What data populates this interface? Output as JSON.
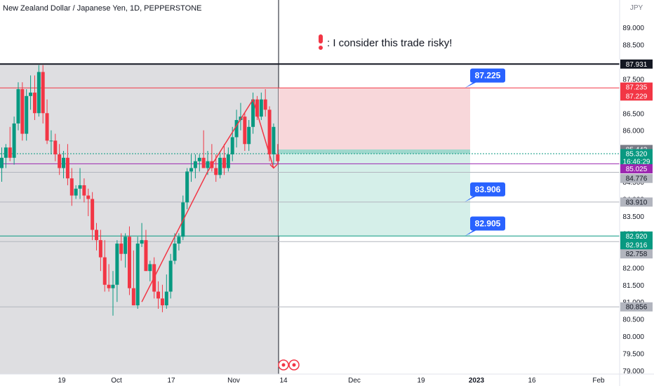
{
  "header": {
    "symbol_title": "New Zealand Dollar / Japanese Yen, 1D, PEPPERSTONE",
    "currency": "JPY"
  },
  "annotation": {
    "text": ": I consider this trade risky!"
  },
  "colors": {
    "up": "#089981",
    "down": "#f23645",
    "stop_zone": "#f8d7da",
    "target_zone": "#d5efe9",
    "label_blue": "#2962ff",
    "shade": "#dcdcdf",
    "purple_line": "#9c27b0"
  },
  "chart_data": {
    "type": "candlestick",
    "title": "New Zealand Dollar / Japanese Yen, 1D, PEPPERSTONE",
    "ylabel": "JPY",
    "ylim": [
      79.0,
      89.5
    ],
    "x_ticks": [
      "19",
      "Oct",
      "17",
      "Nov",
      "14",
      "Dec",
      "19",
      "2023",
      "16",
      "Feb"
    ],
    "y_ticks": [
      "79.000",
      "79.500",
      "80.000",
      "80.500",
      "81.000",
      "81.500",
      "82.000",
      "82.500",
      "83.000",
      "83.500",
      "84.000",
      "84.500",
      "85.000",
      "85.500",
      "86.000",
      "86.500",
      "87.000",
      "87.500",
      "88.000",
      "88.500",
      "89.000"
    ],
    "candles": [
      {
        "o": 84.9,
        "h": 85.5,
        "l": 84.5,
        "c": 85.2
      },
      {
        "o": 85.2,
        "h": 85.6,
        "l": 84.9,
        "c": 85.5
      },
      {
        "o": 85.5,
        "h": 86.1,
        "l": 85.1,
        "c": 85.2
      },
      {
        "o": 85.2,
        "h": 86.4,
        "l": 85.0,
        "c": 86.2
      },
      {
        "o": 86.2,
        "h": 87.4,
        "l": 86.0,
        "c": 87.2
      },
      {
        "o": 87.2,
        "h": 87.4,
        "l": 85.7,
        "c": 85.9
      },
      {
        "o": 85.9,
        "h": 87.2,
        "l": 85.7,
        "c": 87.0
      },
      {
        "o": 87.0,
        "h": 87.6,
        "l": 86.6,
        "c": 87.1
      },
      {
        "o": 87.1,
        "h": 87.6,
        "l": 86.3,
        "c": 86.5
      },
      {
        "o": 86.5,
        "h": 87.9,
        "l": 86.4,
        "c": 87.7
      },
      {
        "o": 87.7,
        "h": 87.9,
        "l": 86.2,
        "c": 86.5
      },
      {
        "o": 86.5,
        "h": 86.9,
        "l": 85.6,
        "c": 85.7
      },
      {
        "o": 85.7,
        "h": 86.0,
        "l": 85.3,
        "c": 85.7
      },
      {
        "o": 85.7,
        "h": 85.9,
        "l": 85.1,
        "c": 85.3
      },
      {
        "o": 85.3,
        "h": 85.6,
        "l": 84.7,
        "c": 84.9
      },
      {
        "o": 84.9,
        "h": 85.4,
        "l": 84.6,
        "c": 85.2
      },
      {
        "o": 85.2,
        "h": 85.6,
        "l": 84.4,
        "c": 84.6
      },
      {
        "o": 84.6,
        "h": 84.9,
        "l": 83.8,
        "c": 84.1
      },
      {
        "o": 84.1,
        "h": 84.4,
        "l": 84.0,
        "c": 84.3
      },
      {
        "o": 84.3,
        "h": 84.9,
        "l": 84.0,
        "c": 84.4
      },
      {
        "o": 84.4,
        "h": 84.6,
        "l": 83.9,
        "c": 84.1
      },
      {
        "o": 84.1,
        "h": 84.3,
        "l": 83.5,
        "c": 84.0
      },
      {
        "o": 84.0,
        "h": 84.2,
        "l": 82.8,
        "c": 83.1
      },
      {
        "o": 83.1,
        "h": 83.3,
        "l": 82.5,
        "c": 82.8
      },
      {
        "o": 82.8,
        "h": 83.1,
        "l": 81.9,
        "c": 82.3
      },
      {
        "o": 82.3,
        "h": 82.8,
        "l": 81.3,
        "c": 81.5
      },
      {
        "o": 81.5,
        "h": 82.1,
        "l": 81.3,
        "c": 81.4
      },
      {
        "o": 81.4,
        "h": 81.9,
        "l": 80.6,
        "c": 81.5
      },
      {
        "o": 81.5,
        "h": 82.8,
        "l": 81.0,
        "c": 82.7
      },
      {
        "o": 82.7,
        "h": 83.0,
        "l": 82.2,
        "c": 82.4
      },
      {
        "o": 82.4,
        "h": 83.0,
        "l": 82.0,
        "c": 82.9
      },
      {
        "o": 82.9,
        "h": 83.2,
        "l": 81.2,
        "c": 81.4
      },
      {
        "o": 81.4,
        "h": 82.5,
        "l": 80.9,
        "c": 80.9
      },
      {
        "o": 80.9,
        "h": 82.9,
        "l": 80.8,
        "c": 82.7
      },
      {
        "o": 82.7,
        "h": 83.3,
        "l": 82.6,
        "c": 82.8
      },
      {
        "o": 82.8,
        "h": 83.1,
        "l": 81.9,
        "c": 81.9
      },
      {
        "o": 81.9,
        "h": 82.2,
        "l": 81.6,
        "c": 82.1
      },
      {
        "o": 82.1,
        "h": 82.3,
        "l": 81.1,
        "c": 81.3
      },
      {
        "o": 81.3,
        "h": 81.6,
        "l": 80.8,
        "c": 81.1
      },
      {
        "o": 81.1,
        "h": 81.5,
        "l": 80.7,
        "c": 80.9
      },
      {
        "o": 80.9,
        "h": 81.8,
        "l": 80.8,
        "c": 81.3
      },
      {
        "o": 81.3,
        "h": 82.4,
        "l": 81.1,
        "c": 82.2
      },
      {
        "o": 82.2,
        "h": 83.0,
        "l": 82.1,
        "c": 82.7
      },
      {
        "o": 82.7,
        "h": 83.0,
        "l": 82.5,
        "c": 82.9
      },
      {
        "o": 82.9,
        "h": 84.1,
        "l": 82.8,
        "c": 83.9
      },
      {
        "o": 83.9,
        "h": 84.9,
        "l": 83.7,
        "c": 84.8
      },
      {
        "o": 84.8,
        "h": 85.3,
        "l": 84.5,
        "c": 84.9
      },
      {
        "o": 84.9,
        "h": 85.3,
        "l": 84.6,
        "c": 85.1
      },
      {
        "o": 85.1,
        "h": 85.3,
        "l": 84.8,
        "c": 85.2
      },
      {
        "o": 85.2,
        "h": 86.0,
        "l": 84.9,
        "c": 84.9
      },
      {
        "o": 84.9,
        "h": 85.4,
        "l": 84.7,
        "c": 85.1
      },
      {
        "o": 85.1,
        "h": 85.6,
        "l": 84.8,
        "c": 84.9
      },
      {
        "o": 84.9,
        "h": 85.3,
        "l": 84.5,
        "c": 84.7
      },
      {
        "o": 84.7,
        "h": 85.4,
        "l": 84.6,
        "c": 85.2
      },
      {
        "o": 85.2,
        "h": 85.6,
        "l": 84.7,
        "c": 84.9
      },
      {
        "o": 84.9,
        "h": 85.5,
        "l": 84.8,
        "c": 85.3
      },
      {
        "o": 85.3,
        "h": 86.1,
        "l": 85.1,
        "c": 85.8
      },
      {
        "o": 85.8,
        "h": 86.6,
        "l": 85.5,
        "c": 86.3
      },
      {
        "o": 86.3,
        "h": 86.8,
        "l": 86.0,
        "c": 86.4
      },
      {
        "o": 86.4,
        "h": 86.5,
        "l": 85.4,
        "c": 85.6
      },
      {
        "o": 85.6,
        "h": 86.3,
        "l": 85.4,
        "c": 86.1
      },
      {
        "o": 86.1,
        "h": 87.1,
        "l": 85.9,
        "c": 86.9
      },
      {
        "o": 86.9,
        "h": 87.0,
        "l": 86.3,
        "c": 86.4
      },
      {
        "o": 86.4,
        "h": 87.1,
        "l": 86.3,
        "c": 86.9
      },
      {
        "o": 86.9,
        "h": 87.2,
        "l": 86.4,
        "c": 86.6
      },
      {
        "o": 86.6,
        "h": 86.7,
        "l": 85.1,
        "c": 85.3
      },
      {
        "o": 85.3,
        "h": 86.2,
        "l": 85.0,
        "c": 86.1
      },
      {
        "o": 85.3,
        "h": 85.6,
        "l": 85.0,
        "c": 85.1
      }
    ],
    "drawn_path": [
      {
        "i": 34,
        "price": 81.0
      },
      {
        "i": 50,
        "price": 84.8
      },
      {
        "i": 61,
        "price": 86.9
      },
      {
        "i": 66,
        "price": 84.9
      }
    ],
    "position": {
      "type": "short",
      "entry": 85.442,
      "stop": 87.229,
      "target": 82.916,
      "labels": [
        {
          "value": "87.225",
          "price": 87.229
        },
        {
          "value": "83.906",
          "price": 83.91
        },
        {
          "value": "82.905",
          "price": 82.916
        }
      ]
    },
    "horizontal_lines": [
      {
        "price": 87.931,
        "color": "#131722",
        "width": 2,
        "dash": "none"
      },
      {
        "price": 87.235,
        "color": "#f23645",
        "width": 1,
        "dash": "none"
      },
      {
        "price": 85.025,
        "color": "#9c27b0",
        "width": 1,
        "dash": "none"
      },
      {
        "price": 85.32,
        "color": "#089981",
        "width": 1,
        "dash": "2,2"
      },
      {
        "price": 84.776,
        "color": "#b2b5be",
        "width": 1,
        "dash": "none"
      },
      {
        "price": 83.91,
        "color": "#b2b5be",
        "width": 1,
        "dash": "none"
      },
      {
        "price": 82.92,
        "color": "#089981",
        "width": 1,
        "dash": "none"
      },
      {
        "price": 82.758,
        "color": "#b2b5be",
        "width": 1,
        "dash": "none"
      },
      {
        "price": 80.856,
        "color": "#b2b5be",
        "width": 1,
        "dash": "none"
      }
    ],
    "price_tags": [
      {
        "text": "87.931",
        "price": 87.931,
        "bg": "#131722",
        "fg": "#ffffff"
      },
      {
        "text": "87.235",
        "price": 87.26,
        "bg": "#f23645",
        "fg": "#ffffff"
      },
      {
        "text": "87.229",
        "price": 87.0,
        "bg": "#f23645",
        "fg": "#ffffff"
      },
      {
        "text": "85.442",
        "price": 85.442,
        "bg": "#787b86",
        "fg": "#ffffff"
      },
      {
        "text": "85.320",
        "price": 85.32,
        "bg": "#089981",
        "fg": "#ffffff"
      },
      {
        "text": "16:46:29",
        "price": 85.09,
        "bg": "#089981",
        "fg": "#ffffff"
      },
      {
        "text": "85.025",
        "price": 84.88,
        "bg": "#9c27b0",
        "fg": "#ffffff"
      },
      {
        "text": "84.776",
        "price": 84.6,
        "bg": "#b2b5be",
        "fg": "#131722"
      },
      {
        "text": "83.910",
        "price": 83.91,
        "bg": "#b2b5be",
        "fg": "#131722"
      },
      {
        "text": "82.920",
        "price": 82.92,
        "bg": "#089981",
        "fg": "#ffffff"
      },
      {
        "text": "82.916",
        "price": 82.66,
        "bg": "#089981",
        "fg": "#ffffff"
      },
      {
        "text": "82.758",
        "price": 82.4,
        "bg": "#b2b5be",
        "fg": "#131722"
      },
      {
        "text": "80.856",
        "price": 80.856,
        "bg": "#b2b5be",
        "fg": "#131722"
      }
    ]
  }
}
